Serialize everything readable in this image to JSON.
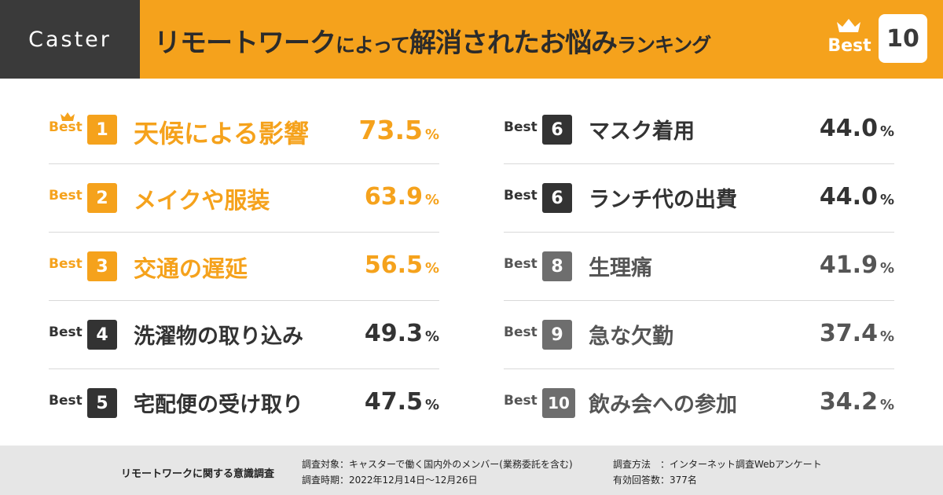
{
  "brand": "Caster",
  "title": {
    "part1": "リモートワーク",
    "part2": "によって",
    "part3": "解消されたお悩み",
    "part4": "ランキング"
  },
  "header_badge": {
    "word": "Best",
    "number": "10"
  },
  "rows": [
    {
      "best": "Best",
      "rank": "1",
      "label": "天候による影響",
      "value": "73.5",
      "unit": "%"
    },
    {
      "best": "Best",
      "rank": "2",
      "label": "メイクや服装",
      "value": "63.9",
      "unit": "%"
    },
    {
      "best": "Best",
      "rank": "3",
      "label": "交通の遅延",
      "value": "56.5",
      "unit": "%"
    },
    {
      "best": "Best",
      "rank": "4",
      "label": "洗濯物の取り込み",
      "value": "49.3",
      "unit": "%"
    },
    {
      "best": "Best",
      "rank": "5",
      "label": "宅配便の受け取り",
      "value": "47.5",
      "unit": "%"
    },
    {
      "best": "Best",
      "rank": "6",
      "label": "マスク着用",
      "value": "44.0",
      "unit": "%"
    },
    {
      "best": "Best",
      "rank": "6",
      "label": "ランチ代の出費",
      "value": "44.0",
      "unit": "%"
    },
    {
      "best": "Best",
      "rank": "8",
      "label": "生理痛",
      "value": "41.9",
      "unit": "%"
    },
    {
      "best": "Best",
      "rank": "9",
      "label": "急な欠勤",
      "value": "37.4",
      "unit": "%"
    },
    {
      "best": "Best",
      "rank": "10",
      "label": "飲み会への参加",
      "value": "34.2",
      "unit": "%"
    }
  ],
  "footer": {
    "survey_name": "リモートワークに関する意識調査",
    "target": "調査対象：キャスターで働く国内外のメンバー(業務委託を含む)",
    "period": "調査時期：2022年12月14日～12月26日",
    "method": "調査方法　：インターネット調査Webアンケート",
    "responses": "有効回答数：377名"
  },
  "colors": {
    "accent": "#f5a21c",
    "dark": "#333333",
    "grey": "#6e6e6e",
    "brand_bg": "#3a3a3a",
    "footer_bg": "#e6e6e6"
  }
}
